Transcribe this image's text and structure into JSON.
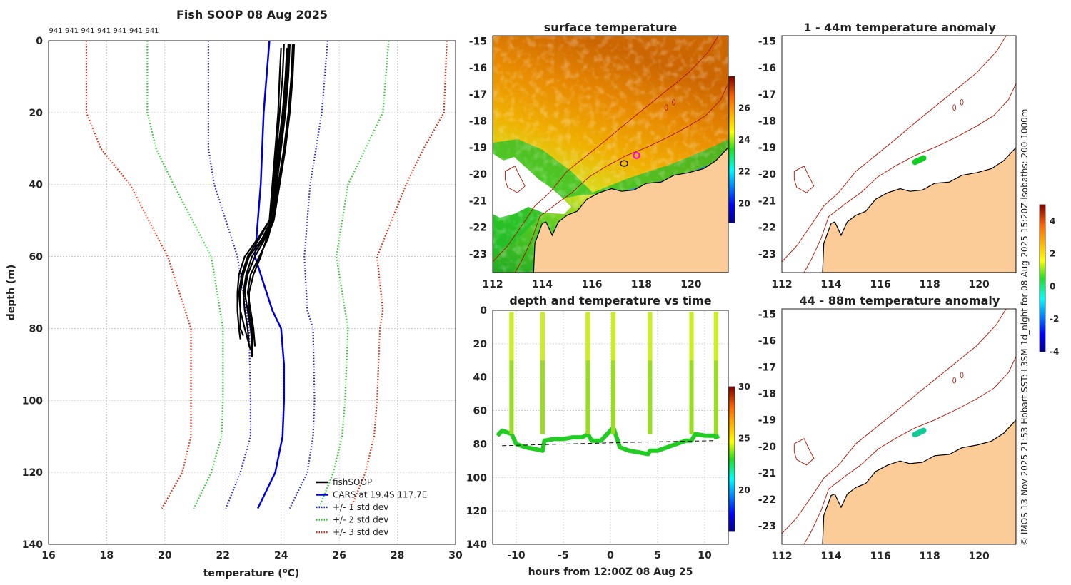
{
  "colors": {
    "fish": "#000000",
    "cars": "#0000dd",
    "std1": "#2323dd",
    "std2": "#22cc22",
    "std3": "#ee1a00",
    "land": "#fbcb98",
    "coast": "#b01000"
  },
  "panel_main": {
    "title": "Fish SOOP 08 Aug 2025",
    "probe_ids": [
      "941",
      "941",
      "941",
      "941",
      "941",
      "941",
      "941"
    ]
  },
  "panel_sst": {
    "title": "surface temperature"
  },
  "panel_depth_time": {
    "title": "depth and temperature vs time"
  },
  "panel_anom1": {
    "title": "1 - 44m temperature anomaly"
  },
  "panel_anom2": {
    "title": "44 - 88m temperature anomaly"
  },
  "side_credit": "© IMOS 13-Nov-2025 21:53 Hobart SST: L3SM-1d_night for 08-Aug-2025 15:20Z isobaths: 200  1000m",
  "chart_data": [
    {
      "type": "line",
      "id": "profile",
      "title": "Fish SOOP 08 Aug 2025",
      "xlabel": "temperature (°C)",
      "ylabel": "depth (m)",
      "xlim": [
        16,
        30
      ],
      "ylim": [
        140,
        0
      ],
      "xticks": [
        16,
        18,
        20,
        22,
        24,
        26,
        28,
        30
      ],
      "yticks": [
        0,
        20,
        40,
        60,
        80,
        100,
        120,
        140
      ],
      "grid": true,
      "legend_position": "bottom-right",
      "legend": [
        "fishSOOP",
        "CARS at 19.4S 117.7E",
        "+/- 1 std dev",
        "+/- 2 std dev",
        "+/- 3 std dev"
      ],
      "cars_mean": {
        "depth": [
          0,
          20,
          40,
          60,
          75,
          80,
          90,
          100,
          110,
          120,
          130
        ],
        "temp": [
          23.6,
          23.4,
          23.3,
          23.1,
          23.7,
          24.0,
          24.1,
          24.1,
          24.05,
          23.8,
          23.2
        ]
      },
      "std1": {
        "left": {
          "depth": [
            0,
            20,
            30,
            40,
            60,
            75,
            80,
            100,
            110,
            120,
            130
          ],
          "temp": [
            21.5,
            21.5,
            21.5,
            21.7,
            22.5,
            22.8,
            22.9,
            22.95,
            22.95,
            22.6,
            22.1
          ]
        },
        "right": {
          "depth": [
            0,
            20,
            30,
            40,
            60,
            75,
            80,
            100,
            110,
            120,
            130
          ],
          "temp": [
            25.6,
            25.4,
            25.2,
            25.0,
            24.8,
            24.9,
            25.1,
            25.15,
            25.1,
            24.9,
            24.3
          ]
        }
      },
      "std2": {
        "left": {
          "depth": [
            0,
            20,
            30,
            40,
            60,
            80,
            100,
            110,
            120,
            130
          ],
          "temp": [
            19.4,
            19.4,
            19.7,
            20.3,
            21.6,
            22.0,
            22.0,
            21.95,
            21.6,
            21.0
          ]
        },
        "right": {
          "depth": [
            0,
            20,
            30,
            40,
            60,
            75,
            80,
            100,
            110,
            120,
            130
          ],
          "temp": [
            27.7,
            27.5,
            26.9,
            26.3,
            25.9,
            26.2,
            26.3,
            26.2,
            26.1,
            25.8,
            25.3
          ]
        }
      },
      "std3": {
        "left": {
          "depth": [
            0,
            20,
            30,
            40,
            60,
            80,
            100,
            110,
            120,
            130
          ],
          "temp": [
            17.3,
            17.3,
            17.8,
            18.8,
            20.1,
            20.9,
            20.9,
            20.9,
            20.6,
            19.9
          ]
        },
        "right": {
          "depth": [
            0,
            20,
            30,
            40,
            60,
            75,
            80,
            100,
            110,
            120,
            130
          ],
          "temp": [
            29.7,
            29.6,
            28.9,
            28.3,
            27.3,
            27.5,
            27.4,
            27.3,
            27.2,
            26.9,
            26.4
          ]
        }
      },
      "fish_profiles": [
        {
          "depth": [
            1,
            10,
            20,
            30,
            40,
            50,
            55,
            60,
            65,
            70,
            75,
            80,
            82
          ],
          "temp": [
            24.1,
            24.05,
            23.95,
            23.85,
            23.75,
            23.65,
            23.35,
            22.9,
            22.7,
            22.6,
            22.6,
            22.6,
            22.7
          ]
        },
        {
          "depth": [
            1,
            10,
            20,
            30,
            40,
            50,
            55,
            60,
            65,
            70,
            75,
            80,
            84
          ],
          "temp": [
            24.3,
            24.25,
            24.15,
            24.0,
            23.85,
            23.7,
            23.45,
            23.1,
            22.85,
            22.75,
            22.85,
            22.95,
            23.0
          ]
        },
        {
          "depth": [
            1,
            10,
            20,
            30,
            40,
            50,
            55,
            60,
            65,
            70,
            75,
            80,
            85
          ],
          "temp": [
            24.4,
            24.35,
            24.25,
            24.1,
            23.9,
            23.7,
            23.55,
            23.25,
            22.95,
            22.85,
            22.95,
            23.05,
            23.1
          ]
        },
        {
          "depth": [
            2,
            10,
            20,
            30,
            40,
            50,
            55,
            60,
            65,
            70,
            75,
            80,
            86
          ],
          "temp": [
            24.2,
            24.15,
            24.05,
            23.9,
            23.8,
            23.6,
            23.25,
            22.85,
            22.65,
            22.55,
            22.6,
            22.75,
            22.95
          ]
        },
        {
          "depth": [
            1,
            10,
            20,
            30,
            40,
            50,
            55,
            60,
            65,
            70,
            75,
            80,
            88
          ],
          "temp": [
            24.45,
            24.4,
            24.3,
            24.15,
            23.95,
            23.75,
            23.5,
            23.3,
            23.05,
            22.9,
            22.9,
            23.0,
            23.0
          ]
        },
        {
          "depth": [
            2,
            10,
            20,
            30,
            40,
            50,
            55,
            60,
            65,
            70,
            75,
            80,
            83
          ],
          "temp": [
            24.0,
            23.95,
            23.9,
            23.8,
            23.7,
            23.6,
            23.2,
            22.75,
            22.55,
            22.5,
            22.5,
            22.55,
            22.6
          ]
        },
        {
          "depth": [
            1,
            10,
            20,
            30,
            40,
            50,
            55,
            60,
            65,
            70,
            75,
            80,
            85
          ],
          "temp": [
            24.25,
            24.2,
            24.1,
            23.95,
            23.8,
            23.65,
            23.4,
            23.0,
            22.8,
            22.7,
            22.75,
            22.85,
            22.9
          ]
        }
      ]
    },
    {
      "type": "heatmap",
      "id": "sst_map",
      "title": "surface temperature",
      "xlim": [
        112,
        121.5
      ],
      "ylim": [
        -23.7,
        -14.8
      ],
      "xticks": [
        112,
        114,
        116,
        118,
        120
      ],
      "yticks": [
        -15,
        -16,
        -17,
        -18,
        -19,
        -20,
        -21,
        -22,
        -23
      ],
      "colorbar": {
        "min": 18.8,
        "max": 28,
        "ticks": [
          20,
          22,
          24,
          26
        ]
      },
      "track": {
        "lon": [
          117.3,
          117.8
        ],
        "lat": [
          -19.6,
          -19.3
        ]
      }
    },
    {
      "type": "scatter",
      "id": "depth_time",
      "title": "depth and temperature vs time",
      "xlabel": "hours from 12:00Z 08 Aug 25",
      "xlim": [
        -12.5,
        12.5
      ],
      "ylim": [
        140,
        0
      ],
      "xticks": [
        -10,
        -5,
        0,
        5,
        10
      ],
      "yticks": [
        0,
        20,
        40,
        60,
        80,
        100,
        120,
        140
      ],
      "colorbar": {
        "min": 16,
        "max": 30,
        "ticks": [
          20,
          25,
          30
        ]
      },
      "bottom_depth_dashed": {
        "x": [
          -11.5,
          2,
          11
        ],
        "depth": [
          81,
          79,
          78
        ]
      },
      "profile_times": [
        -10.5,
        -7.2,
        -2.4,
        0.3,
        4.2,
        8.6,
        11.2
      ],
      "bottom_trace": {
        "hours": [
          -12,
          -11.5,
          -11,
          -10.5,
          -10,
          -9,
          -8,
          -7.2,
          -7,
          -6,
          -5,
          -4,
          -3,
          -2.4,
          -2,
          -1,
          0,
          0.3,
          1,
          2,
          3,
          4,
          4.2,
          5,
          6,
          7,
          8,
          8.6,
          9,
          10,
          11,
          11.2,
          11.5
        ],
        "depth": [
          75,
          72,
          73,
          74,
          80,
          82,
          83,
          84,
          78,
          77,
          77,
          76,
          76,
          74,
          78,
          78,
          72,
          70,
          82,
          84,
          85,
          86,
          84,
          84,
          82,
          80,
          78,
          78,
          74,
          75,
          75,
          76,
          75
        ]
      }
    },
    {
      "type": "scatter",
      "id": "anomaly_1_44",
      "title": "1 - 44m temperature anomaly",
      "xlim": [
        112,
        121.5
      ],
      "ylim": [
        -23.7,
        -14.8
      ],
      "xticks": [
        112,
        114,
        116,
        118,
        120
      ],
      "yticks": [
        -15,
        -16,
        -17,
        -18,
        -19,
        -20,
        -21,
        -22,
        -23
      ],
      "track": {
        "lon": [
          117.4,
          117.75
        ],
        "lat": [
          -19.55,
          -19.4
        ]
      },
      "anomaly_value": 0.3
    },
    {
      "type": "scatter",
      "id": "anomaly_44_88",
      "title": "44 - 88m temperature anomaly",
      "xlim": [
        112,
        121.5
      ],
      "ylim": [
        -23.7,
        -14.8
      ],
      "xticks": [
        112,
        114,
        116,
        118,
        120
      ],
      "yticks": [
        -15,
        -16,
        -17,
        -18,
        -19,
        -20,
        -21,
        -22,
        -23
      ],
      "track": {
        "lon": [
          117.4,
          117.75
        ],
        "lat": [
          -19.55,
          -19.4
        ]
      },
      "anomaly_value": -1.0,
      "colorbar": {
        "min": -4,
        "max": 5,
        "ticks": [
          -4,
          -2,
          0,
          2,
          4
        ]
      }
    }
  ]
}
